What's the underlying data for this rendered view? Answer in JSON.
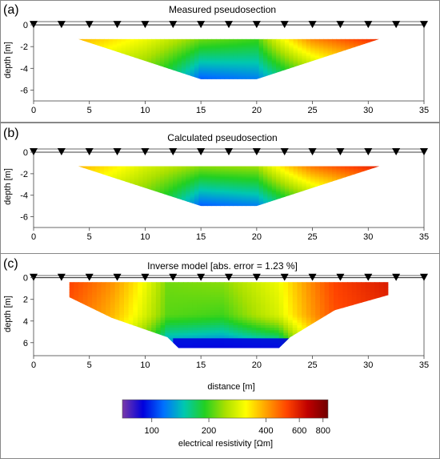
{
  "panels": [
    {
      "letter": "(a)",
      "title": "Measured pseudosection",
      "ylabel": "depth [m]",
      "y_ticks": [
        "0",
        "-2",
        "-4",
        "-6"
      ],
      "y_values": [
        0,
        -2,
        -4,
        -6
      ],
      "ylim": [
        -7,
        0.3
      ],
      "x_ticks": [
        "0",
        "5",
        "10",
        "15",
        "20",
        "25",
        "30",
        "35"
      ]
    },
    {
      "letter": "(b)",
      "title": "Calculated pseudosection",
      "ylabel": "depth [m]",
      "y_ticks": [
        "0",
        "-2",
        "-4",
        "-6"
      ],
      "y_values": [
        0,
        -2,
        -4,
        -6
      ],
      "ylim": [
        -7,
        0.3
      ],
      "x_ticks": [
        "0",
        "5",
        "10",
        "15",
        "20",
        "25",
        "30",
        "35"
      ]
    },
    {
      "letter": "(c)",
      "title": "Inverse model [abs. error = 1.23 %]",
      "ylabel": "depth [m]",
      "y_ticks": [
        "0",
        "2",
        "4",
        "6"
      ],
      "y_values": [
        0,
        2,
        4,
        6
      ],
      "ylim": [
        7.2,
        -0.2
      ],
      "x_ticks": [
        "0",
        "5",
        "10",
        "15",
        "20",
        "25",
        "30",
        "35"
      ],
      "xlabel": "distance [m]"
    }
  ],
  "colorbar": {
    "ticks": [
      "100",
      "200",
      "400",
      "600",
      "800"
    ],
    "tick_values": [
      100,
      200,
      400,
      600,
      800
    ],
    "label": "electrical resistivity [Ωm]",
    "colors": [
      "#7a3aa8",
      "#0000dd",
      "#0070ff",
      "#00c8b0",
      "#22d022",
      "#a8e000",
      "#ffff00",
      "#ffa000",
      "#ff4400",
      "#c00000",
      "#700000"
    ]
  },
  "chart_data": [
    {
      "type": "heatmap",
      "title": "Measured pseudosection",
      "ylabel": "depth [m]",
      "xlim": [
        0,
        35
      ],
      "ylim": [
        -7,
        0
      ],
      "electrodes_x": [
        0,
        2.5,
        5,
        7.5,
        10,
        12.5,
        15,
        17.5,
        20,
        22.5,
        25,
        27.5,
        30,
        32.5,
        35
      ],
      "data_region": [
        [
          4,
          -1.3
        ],
        [
          31,
          -1.3
        ],
        [
          20,
          -5
        ],
        [
          15,
          -5
        ]
      ],
      "resistivity_profile": {
        "x": [
          4,
          10,
          15,
          20,
          25,
          31
        ],
        "shallow_ohm_m": [
          380,
          300,
          220,
          200,
          430,
          560
        ],
        "deep_ohm_m": [
          250,
          200,
          110,
          120,
          200,
          300
        ]
      }
    },
    {
      "type": "heatmap",
      "title": "Calculated pseudosection",
      "ylabel": "depth [m]",
      "xlim": [
        0,
        35
      ],
      "ylim": [
        -7,
        0
      ],
      "electrodes_x": [
        0,
        2.5,
        5,
        7.5,
        10,
        12.5,
        15,
        17.5,
        20,
        22.5,
        25,
        27.5,
        30,
        32.5,
        35
      ],
      "data_region": [
        [
          4,
          -1.3
        ],
        [
          31,
          -1.3
        ],
        [
          20,
          -5
        ],
        [
          15,
          -5
        ]
      ],
      "resistivity_profile": {
        "x": [
          4,
          10,
          15,
          20,
          25,
          31
        ],
        "shallow_ohm_m": [
          380,
          280,
          230,
          240,
          450,
          580
        ],
        "deep_ohm_m": [
          260,
          200,
          110,
          120,
          200,
          300
        ]
      }
    },
    {
      "type": "heatmap",
      "title": "Inverse model [abs. error = 1.23 %]",
      "xlabel": "distance [m]",
      "ylabel": "depth [m]",
      "xlim": [
        0,
        35
      ],
      "ylim": [
        7,
        0
      ],
      "electrodes_x": [
        0,
        2.5,
        5,
        7.5,
        10,
        12.5,
        15,
        17.5,
        20,
        22.5,
        25,
        27.5,
        30,
        32.5,
        35
      ],
      "model_region": [
        [
          3.2,
          0.4
        ],
        [
          31.8,
          0.4
        ],
        [
          31.8,
          1.6
        ],
        [
          27,
          3
        ],
        [
          23,
          5.5
        ],
        [
          22,
          6.5
        ],
        [
          13,
          6.5
        ],
        [
          12,
          5.5
        ],
        [
          7,
          3.7
        ],
        [
          3.2,
          1.8
        ]
      ],
      "resistivity_profile": {
        "x": [
          3.2,
          7,
          12,
          17,
          22,
          27,
          31.8
        ],
        "shallow_ohm_m": [
          520,
          420,
          220,
          230,
          300,
          520,
          600
        ],
        "middle_ohm_m": [
          480,
          380,
          210,
          200,
          280,
          500,
          560
        ],
        "deep_ohm_m": [
          null,
          300,
          110,
          100,
          110,
          400,
          null
        ]
      },
      "bottom_layer_ohm_m": 90
    }
  ]
}
